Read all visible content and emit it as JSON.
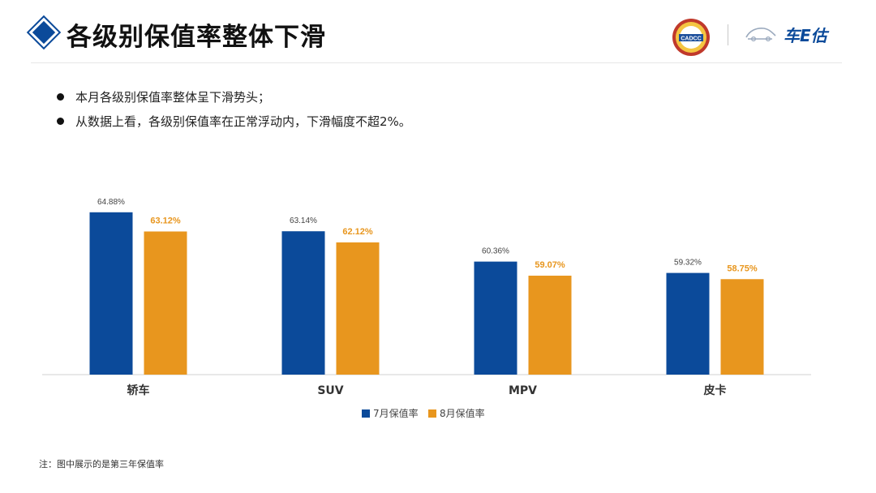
{
  "header": {
    "title": "各级别保值率整体下滑",
    "logo_badge_text": "CADCC",
    "brand_text": "车E估",
    "diamond_icon": "diamond-icon"
  },
  "bullets": [
    "本月各级别保值率整体呈下滑势头；",
    "从数据上看，各级别保值率在正常浮动内，下滑幅度不超2%。"
  ],
  "colors": {
    "series_july": "#0b4a9a",
    "series_aug": "#e8961e",
    "aug_label": "#e8961e",
    "july_label": "#444444"
  },
  "chart_data": {
    "type": "bar",
    "categories": [
      "轿车",
      "SUV",
      "MPV",
      "皮卡"
    ],
    "series": [
      {
        "name": "7月保值率",
        "values": [
          64.88,
          63.14,
          60.36,
          59.32
        ],
        "labels": [
          "64.88%",
          "63.14%",
          "60.36%",
          "59.32%"
        ]
      },
      {
        "name": "8月保值率",
        "values": [
          63.12,
          62.12,
          59.07,
          58.75
        ],
        "labels": [
          "63.12%",
          "62.12%",
          "59.07%",
          "58.75%"
        ]
      }
    ],
    "ylim": [
      50,
      66.5
    ],
    "legend_position": "bottom"
  },
  "footnote": "注：图中展示的是第三年保值率"
}
